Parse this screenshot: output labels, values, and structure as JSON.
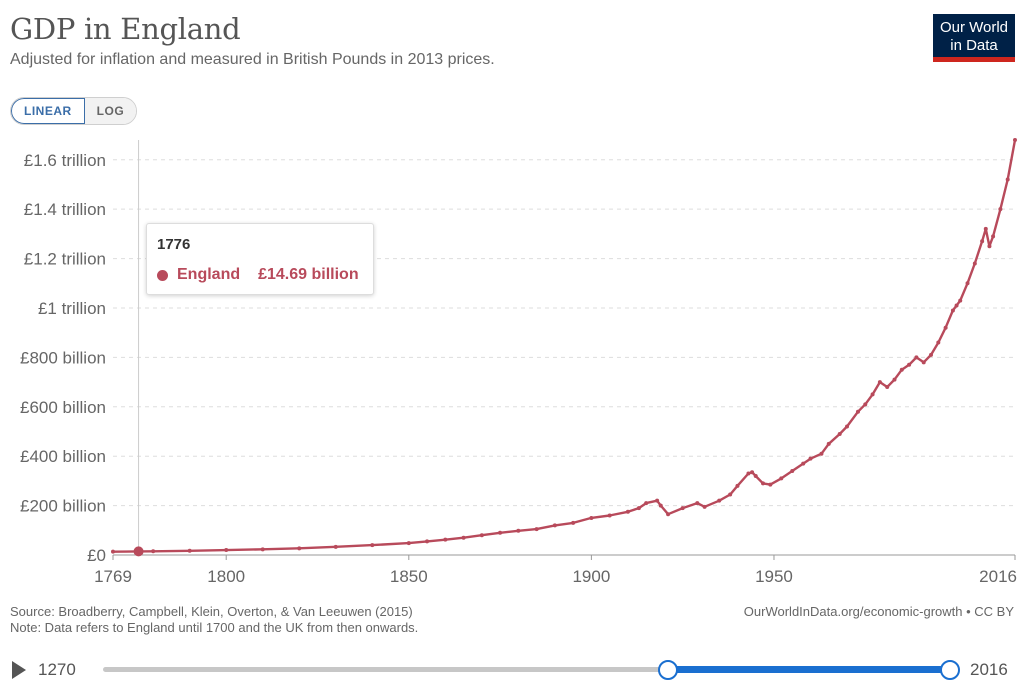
{
  "header": {
    "title": "GDP in England",
    "subtitle": "Adjusted for inflation and measured in British Pounds in 2013 prices.",
    "logo_line1": "Our World",
    "logo_line2": "in Data"
  },
  "scale": {
    "linear_label": "LINEAR",
    "log_label": "LOG",
    "selected": "LINEAR"
  },
  "colors": {
    "series": "#b84a5b",
    "accent": "#1a6fd0",
    "logo_bg": "#002147",
    "logo_bar": "#ce261e"
  },
  "tooltip": {
    "year": "1776",
    "series": "England",
    "value": "£14.69 billion"
  },
  "footer": {
    "source": "Source: Broadberry, Campbell, Klein, Overton, & Van Leeuwen (2015)",
    "note": "Note: Data refers to England until 1700 and the UK from then onwards.",
    "url": "OurWorldInData.org/economic-growth • CC BY"
  },
  "timeline": {
    "start": "1270",
    "end": "2016",
    "range_start": 1769,
    "range_end": 2016
  },
  "chart_data": {
    "type": "line",
    "title": "GDP in England",
    "subtitle": "Adjusted for inflation and measured in British Pounds in 2013 prices.",
    "xlim": [
      1769,
      2016
    ],
    "ylim": [
      0,
      1.68
    ],
    "y_unit": "trillion £ (2013 prices)",
    "yticks": [
      {
        "v": 0,
        "label": "£0"
      },
      {
        "v": 0.2,
        "label": "£200 billion"
      },
      {
        "v": 0.4,
        "label": "£400 billion"
      },
      {
        "v": 0.6,
        "label": "£600 billion"
      },
      {
        "v": 0.8,
        "label": "£800 billion"
      },
      {
        "v": 1.0,
        "label": "£1 trillion"
      },
      {
        "v": 1.2,
        "label": "£1.2 trillion"
      },
      {
        "v": 1.4,
        "label": "£1.4 trillion"
      },
      {
        "v": 1.6,
        "label": "£1.6 trillion"
      }
    ],
    "xticks": [
      {
        "v": 1769,
        "label": "1769"
      },
      {
        "v": 1800,
        "label": "1800"
      },
      {
        "v": 1850,
        "label": "1850"
      },
      {
        "v": 1900,
        "label": "1900"
      },
      {
        "v": 1950,
        "label": "1950"
      },
      {
        "v": 2016,
        "label": "2016"
      }
    ],
    "grid": true,
    "hover_year": 1776,
    "series": [
      {
        "name": "England",
        "points": [
          [
            1769,
            0.0135
          ],
          [
            1776,
            0.0147
          ],
          [
            1780,
            0.015
          ],
          [
            1790,
            0.017
          ],
          [
            1800,
            0.02
          ],
          [
            1810,
            0.023
          ],
          [
            1820,
            0.027
          ],
          [
            1830,
            0.033
          ],
          [
            1840,
            0.04
          ],
          [
            1850,
            0.048
          ],
          [
            1855,
            0.055
          ],
          [
            1860,
            0.062
          ],
          [
            1865,
            0.07
          ],
          [
            1870,
            0.08
          ],
          [
            1875,
            0.09
          ],
          [
            1880,
            0.098
          ],
          [
            1885,
            0.105
          ],
          [
            1890,
            0.12
          ],
          [
            1895,
            0.13
          ],
          [
            1900,
            0.15
          ],
          [
            1905,
            0.16
          ],
          [
            1910,
            0.175
          ],
          [
            1913,
            0.19
          ],
          [
            1915,
            0.21
          ],
          [
            1918,
            0.22
          ],
          [
            1919,
            0.2
          ],
          [
            1921,
            0.165
          ],
          [
            1925,
            0.19
          ],
          [
            1929,
            0.21
          ],
          [
            1931,
            0.195
          ],
          [
            1935,
            0.22
          ],
          [
            1938,
            0.245
          ],
          [
            1940,
            0.28
          ],
          [
            1943,
            0.33
          ],
          [
            1944,
            0.335
          ],
          [
            1945,
            0.32
          ],
          [
            1947,
            0.29
          ],
          [
            1949,
            0.285
          ],
          [
            1952,
            0.31
          ],
          [
            1955,
            0.34
          ],
          [
            1958,
            0.37
          ],
          [
            1960,
            0.39
          ],
          [
            1963,
            0.41
          ],
          [
            1965,
            0.45
          ],
          [
            1968,
            0.49
          ],
          [
            1970,
            0.52
          ],
          [
            1973,
            0.58
          ],
          [
            1975,
            0.61
          ],
          [
            1977,
            0.65
          ],
          [
            1979,
            0.7
          ],
          [
            1981,
            0.68
          ],
          [
            1983,
            0.71
          ],
          [
            1985,
            0.75
          ],
          [
            1987,
            0.77
          ],
          [
            1989,
            0.8
          ],
          [
            1991,
            0.78
          ],
          [
            1993,
            0.81
          ],
          [
            1995,
            0.86
          ],
          [
            1997,
            0.92
          ],
          [
            1999,
            0.99
          ],
          [
            2000,
            1.01
          ],
          [
            2001,
            1.03
          ],
          [
            2003,
            1.1
          ],
          [
            2005,
            1.18
          ],
          [
            2007,
            1.27
          ],
          [
            2008,
            1.32
          ],
          [
            2009,
            1.25
          ],
          [
            2010,
            1.29
          ],
          [
            2012,
            1.4
          ],
          [
            2014,
            1.52
          ],
          [
            2016,
            1.68
          ]
        ]
      }
    ]
  }
}
